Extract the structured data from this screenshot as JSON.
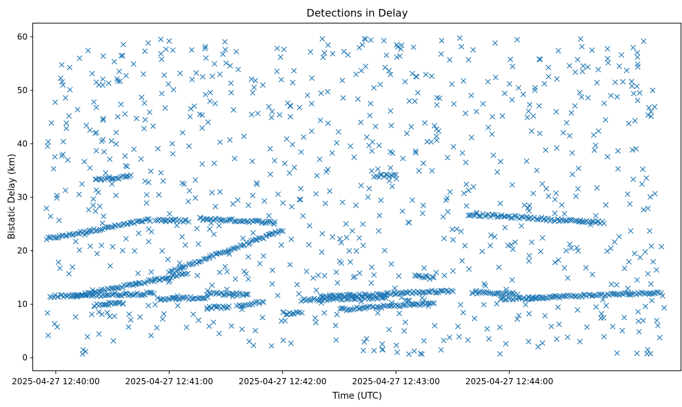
{
  "chart_data": {
    "type": "scatter",
    "title": "Detections in Delay",
    "xlabel": "Time (UTC)",
    "ylabel": "Bistatic Delay (km)",
    "marker": "x",
    "x_unit": "seconds after 2025-04-27 12:40:00",
    "xlim": [
      -12,
      331
    ],
    "ylim": [
      -2.5,
      62.5
    ],
    "grid": false,
    "x_ticks": [
      {
        "value": 0,
        "label": "2025-04-27 12:40:00"
      },
      {
        "value": 60,
        "label": "2025-04-27 12:41:00"
      },
      {
        "value": 120,
        "label": "2025-04-27 12:42:00"
      },
      {
        "value": 180,
        "label": "2025-04-27 12:43:00"
      },
      {
        "value": 240,
        "label": "2025-04-27 12:44:00"
      }
    ],
    "y_ticks": [
      {
        "value": 0,
        "label": "0"
      },
      {
        "value": 10,
        "label": "10"
      },
      {
        "value": 20,
        "label": "20"
      },
      {
        "value": 30,
        "label": "30"
      },
      {
        "value": 40,
        "label": "40"
      },
      {
        "value": 50,
        "label": "50"
      },
      {
        "value": 60,
        "label": "60"
      }
    ],
    "series": [
      {
        "name": "detections",
        "color": "#1f77b4",
        "x_start": -5,
        "x_end": 322,
        "tracks": [
          {
            "x_from": -5,
            "x_to": 50,
            "y_from": 22.2,
            "y_to": 25.8
          },
          {
            "x_from": 60,
            "x_to": 120,
            "y_from": 16.0,
            "y_to": 23.8
          },
          {
            "x_from": 10,
            "x_to": 70,
            "y_from": 11.5,
            "y_to": 15.8
          },
          {
            "x_from": -3,
            "x_to": 52,
            "y_from": 11.5,
            "y_to": 12.0
          },
          {
            "x_from": 54,
            "x_to": 80,
            "y_from": 11.0,
            "y_to": 11.2
          },
          {
            "x_from": 80,
            "x_to": 102,
            "y_from": 12.0,
            "y_to": 11.8
          },
          {
            "x_from": 76,
            "x_to": 116,
            "y_from": 26.0,
            "y_to": 25.3
          },
          {
            "x_from": 53,
            "x_to": 70,
            "y_from": 25.8,
            "y_to": 25.6
          },
          {
            "x_from": 21,
            "x_to": 40,
            "y_from": 33.3,
            "y_to": 34.0
          },
          {
            "x_from": 20,
            "x_to": 36,
            "y_from": 9.8,
            "y_to": 10.3
          },
          {
            "x_from": 80,
            "x_to": 92,
            "y_from": 9.4,
            "y_to": 9.5
          },
          {
            "x_from": 96,
            "x_to": 110,
            "y_from": 9.6,
            "y_to": 10.5
          },
          {
            "x_from": 150,
            "x_to": 200,
            "y_from": 9.0,
            "y_to": 10.2
          },
          {
            "x_from": 140,
            "x_to": 175,
            "y_from": 11.5,
            "y_to": 11.8
          },
          {
            "x_from": 175,
            "x_to": 210,
            "y_from": 12.0,
            "y_to": 12.5
          },
          {
            "x_from": 130,
            "x_to": 175,
            "y_from": 10.8,
            "y_to": 11.3
          },
          {
            "x_from": 190,
            "x_to": 200,
            "y_from": 15.5,
            "y_to": 14.8
          },
          {
            "x_from": 220,
            "x_to": 244,
            "y_from": 12.2,
            "y_to": 12.0
          },
          {
            "x_from": 250,
            "x_to": 320,
            "y_from": 11.2,
            "y_to": 12.2
          },
          {
            "x_from": 235,
            "x_to": 258,
            "y_from": 11.0,
            "y_to": 11.2
          },
          {
            "x_from": 218,
            "x_to": 258,
            "y_from": 26.8,
            "y_to": 26.0
          },
          {
            "x_from": 258,
            "x_to": 290,
            "y_from": 25.9,
            "y_to": 25.3
          },
          {
            "x_from": 170,
            "x_to": 180,
            "y_from": 34.0,
            "y_to": 34.2
          },
          {
            "x_from": 120,
            "x_to": 130,
            "y_from": 8.3,
            "y_to": 8.4
          }
        ],
        "noise_count": 820,
        "y_range": [
          0.5,
          59.8
        ]
      }
    ]
  }
}
